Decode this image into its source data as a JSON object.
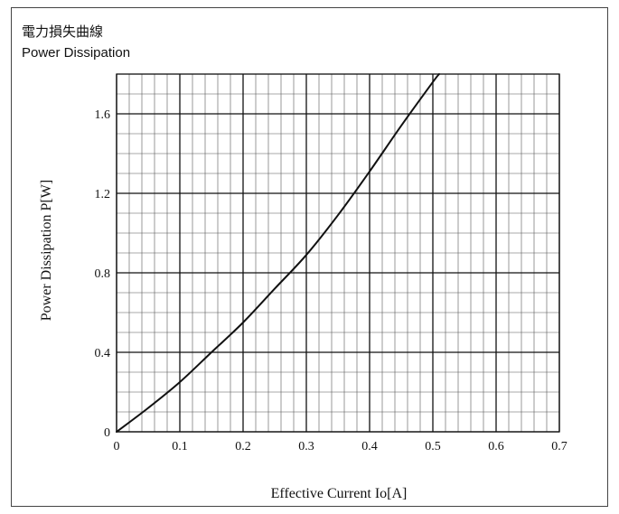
{
  "chart_data": {
    "type": "line",
    "title": "電力損失曲線",
    "subtitle": "Power Dissipation",
    "xlabel": "Effective Current Io[A]",
    "ylabel": "Power Dissipation P[W]",
    "xlim": [
      0,
      0.7
    ],
    "ylim": [
      0,
      1.8
    ],
    "xticks": [
      0,
      0.1,
      0.2,
      0.3,
      0.4,
      0.5,
      0.6,
      0.7
    ],
    "xtick_labels": [
      "0",
      "0.1",
      "0.2",
      "0.3",
      "0.4",
      "0.5",
      "0.6",
      "0.7"
    ],
    "yticks": [
      0,
      0.4,
      0.8,
      1.2,
      1.6
    ],
    "ytick_labels": [
      "0",
      "0.4",
      "0.8",
      "1.2",
      "1.6"
    ],
    "minor_grid": {
      "x_step": 0.02,
      "y_step": 0.1
    },
    "grid": true,
    "legend": false,
    "line_color": "#111111",
    "series": [
      {
        "x": [
          0,
          0.05,
          0.1,
          0.15,
          0.2,
          0.25,
          0.3,
          0.35,
          0.4,
          0.45,
          0.5,
          0.51
        ],
        "y": [
          0,
          0.12,
          0.25,
          0.4,
          0.55,
          0.72,
          0.89,
          1.09,
          1.31,
          1.54,
          1.76,
          1.8
        ]
      }
    ]
  }
}
